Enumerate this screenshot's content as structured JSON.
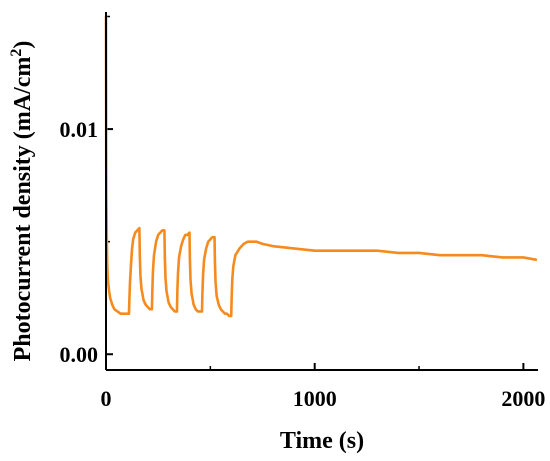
{
  "chart_data": {
    "type": "line",
    "xlabel": "Time (s)",
    "ylabel": {
      "main": "Photocurrent density (mA/cm",
      "sup": "2",
      "close": ")"
    },
    "xlim": [
      0,
      2070
    ],
    "ylim": [
      -0.0007,
      0.0152
    ],
    "x_ticks": [
      {
        "value": 0,
        "label": "0"
      },
      {
        "value": 1000,
        "label": "1000"
      },
      {
        "value": 2000,
        "label": "2000"
      }
    ],
    "y_ticks": [
      {
        "value": 0.0,
        "label": "0.00"
      },
      {
        "value": 0.01,
        "label": "0.01"
      }
    ],
    "grid": false,
    "legend": "none",
    "colors": {
      "series": "#f58a1f",
      "axis": "#000000"
    },
    "series": [
      {
        "x": [
          0,
          0.5,
          1,
          1.5,
          2,
          3,
          4,
          5,
          6,
          8,
          10,
          15,
          20,
          30,
          40,
          55,
          70,
          85,
          100,
          110,
          112,
          115,
          120,
          125,
          130,
          140,
          150,
          160,
          162,
          165,
          170,
          180,
          190,
          200,
          210,
          220,
          222,
          225,
          230,
          240,
          250,
          260,
          270,
          280,
          282,
          285,
          290,
          300,
          310,
          320,
          330,
          340,
          342,
          345,
          350,
          360,
          370,
          380,
          390,
          400,
          402,
          405,
          410,
          420,
          430,
          440,
          450,
          460,
          462,
          465,
          470,
          480,
          490,
          500,
          510,
          520,
          522,
          525,
          530,
          540,
          550,
          560,
          570,
          580,
          590,
          600,
          602,
          605,
          610,
          620,
          640,
          660,
          680,
          700,
          720,
          750,
          800,
          900,
          1000,
          1100,
          1200,
          1300,
          1400,
          1500,
          1600,
          1700,
          1800,
          1900,
          2000,
          2060
        ],
        "y": [
          0.015,
          0.012,
          0.009,
          0.0072,
          0.0068,
          0.006,
          0.0052,
          0.0045,
          0.004,
          0.0035,
          0.0032,
          0.0028,
          0.0025,
          0.0022,
          0.002,
          0.0019,
          0.0018,
          0.0018,
          0.0018,
          0.0018,
          0.0024,
          0.0032,
          0.004,
          0.0047,
          0.0051,
          0.0054,
          0.0055,
          0.0056,
          0.0044,
          0.0035,
          0.0029,
          0.0024,
          0.0022,
          0.0021,
          0.002,
          0.002,
          0.0028,
          0.0037,
          0.0044,
          0.005,
          0.0053,
          0.0054,
          0.0055,
          0.0055,
          0.0043,
          0.0034,
          0.0028,
          0.0023,
          0.0021,
          0.002,
          0.0019,
          0.0019,
          0.0028,
          0.0036,
          0.0043,
          0.0048,
          0.0051,
          0.0053,
          0.0053,
          0.0054,
          0.0042,
          0.0033,
          0.0027,
          0.0022,
          0.002,
          0.0019,
          0.0019,
          0.0019,
          0.0027,
          0.0035,
          0.0042,
          0.0047,
          0.005,
          0.0051,
          0.0052,
          0.0052,
          0.0041,
          0.0032,
          0.0026,
          0.0022,
          0.002,
          0.0019,
          0.0018,
          0.0018,
          0.0017,
          0.0017,
          0.0025,
          0.0033,
          0.0039,
          0.0044,
          0.0047,
          0.0049,
          0.005,
          0.005,
          0.005,
          0.0049,
          0.0048,
          0.0047,
          0.0046,
          0.0046,
          0.0046,
          0.0046,
          0.0045,
          0.0045,
          0.0044,
          0.0044,
          0.0044,
          0.0043,
          0.0043,
          0.0042
        ]
      }
    ]
  }
}
